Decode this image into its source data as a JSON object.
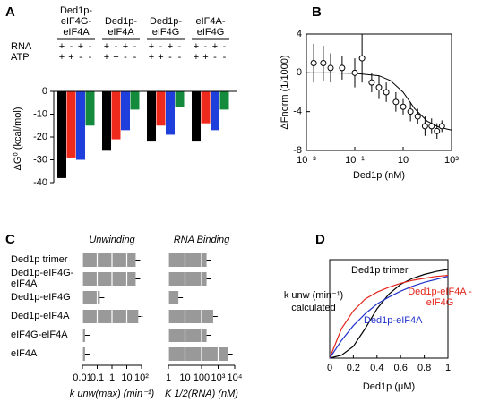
{
  "chart_data": [
    {
      "type": "bar",
      "panel": "A",
      "ylabel": "ΔG⁰ (kcal/mol)",
      "categories": [
        "Ded1p-eIF4G-eIF4A",
        "Ded1p-eIF4A",
        "Ded1p-eIF4G",
        "eIF4A-eIF4G"
      ],
      "condition_rows": [
        {
          "name": "RNA",
          "signs": [
            "+",
            "-",
            "+",
            "-"
          ]
        },
        {
          "name": "ATP",
          "signs": [
            "+",
            "+",
            "-",
            "-"
          ]
        }
      ],
      "series": [
        {
          "color": "#000000",
          "values": [
            -38,
            -26,
            -22,
            -22
          ]
        },
        {
          "color": "#ee2a1c",
          "values": [
            -29,
            -21,
            -15,
            -14
          ]
        },
        {
          "color": "#1f3fdc",
          "values": [
            -30,
            -17,
            -19,
            -17
          ]
        },
        {
          "color": "#138a3c",
          "values": [
            -15,
            -8,
            -7,
            -8
          ]
        }
      ],
      "ylim": [
        -40,
        0
      ],
      "yticks": [
        0,
        -10,
        -20,
        -30,
        -40
      ]
    },
    {
      "type": "scatter",
      "panel": "B",
      "xlabel": "Ded1p (nM)",
      "ylabel": "ΔFnorm (1/1000)",
      "log_x": true,
      "xlim": [
        0.001,
        1000
      ],
      "xticks": [
        {
          "value": 0.001,
          "label": "10⁻³"
        },
        {
          "value": 0.1,
          "label": "10⁻¹"
        },
        10,
        {
          "value": 1000,
          "label": "10³"
        }
      ],
      "ylim": [
        -8,
        4
      ],
      "yticks": [
        -8,
        -4,
        0,
        4
      ],
      "x": [
        0.002,
        0.005,
        0.01,
        0.03,
        0.1,
        0.2,
        0.5,
        1,
        2,
        5,
        10,
        20,
        40,
        80,
        150,
        250,
        400
      ],
      "values": [
        1,
        1,
        0.5,
        0.5,
        0,
        1.5,
        -1,
        -1.5,
        -2,
        -3,
        -3.5,
        -4,
        -4.5,
        -5.5,
        -5.5,
        -6,
        -5.5
      ],
      "errors": [
        2,
        1.8,
        1.5,
        1.2,
        1.5,
        2.5,
        1,
        1.2,
        1,
        1,
        0.8,
        1,
        0.8,
        1,
        0.8,
        0.8,
        0.6
      ],
      "fit": {
        "x": [
          0.001,
          0.01,
          0.1,
          1,
          3,
          10,
          30,
          100,
          300,
          1000
        ],
        "values": [
          0,
          0,
          -0.05,
          -0.3,
          -0.8,
          -2,
          -3.7,
          -5,
          -5.6,
          -5.9
        ]
      }
    },
    {
      "type": "barh",
      "panel": "C",
      "title": "Unwinding",
      "xlabel": "k unw(max) (min⁻¹)",
      "log_x": true,
      "categories": [
        "Ded1p trimer",
        "Ded1p-eIF4G-eIF4A",
        "Ded1p-eIF4G",
        "Ded1p-eIF4A",
        "eIF4G-eIF4A",
        "eIF4A"
      ],
      "values": [
        40,
        40,
        0.15,
        60,
        0.015,
        0.015
      ],
      "color": "#999999",
      "xlim": [
        0.01,
        100
      ],
      "xticks": [
        0.01,
        0.1,
        1,
        10,
        {
          "value": 100,
          "label": "10²"
        }
      ]
    },
    {
      "type": "barh",
      "title": "RNA Binding",
      "xlabel": "K 1/2(RNA) (nM)",
      "log_x": true,
      "values": [
        200,
        200,
        4,
        500,
        200,
        4000
      ],
      "color": "#999999",
      "xlim": [
        1,
        10000
      ],
      "xticks": [
        1,
        10,
        100,
        {
          "value": 1000,
          "label": "10³"
        },
        {
          "value": 10000,
          "label": "10⁴"
        }
      ]
    },
    {
      "type": "line",
      "panel": "D",
      "xlabel": "Ded1p (μM)",
      "ylabel": [
        "k unw (min⁻¹)",
        "calculated"
      ],
      "x": [
        0,
        0.1,
        0.2,
        0.3,
        0.4,
        0.5,
        0.6,
        0.7,
        0.8,
        0.9,
        1
      ],
      "xlim": [
        0,
        1
      ],
      "xticks": [
        0,
        0.2,
        0.4,
        0.6,
        0.8,
        1
      ],
      "ylim": [
        0,
        1
      ],
      "series": [
        {
          "name": "Ded1p trimer",
          "color": "#000000",
          "values": [
            0,
            0.03,
            0.12,
            0.3,
            0.5,
            0.65,
            0.75,
            0.81,
            0.85,
            0.88,
            0.9
          ]
        },
        {
          "name": "Ded1p-eIF4A -eIF4G",
          "color": "#e3241b",
          "values": [
            0,
            0.3,
            0.48,
            0.6,
            0.67,
            0.72,
            0.76,
            0.79,
            0.81,
            0.83,
            0.84
          ]
        },
        {
          "name": "Ded1p-eIF4A",
          "color": "#2233cc",
          "values": [
            0,
            0.18,
            0.33,
            0.45,
            0.55,
            0.62,
            0.68,
            0.73,
            0.77,
            0.8,
            0.83
          ]
        }
      ]
    }
  ]
}
